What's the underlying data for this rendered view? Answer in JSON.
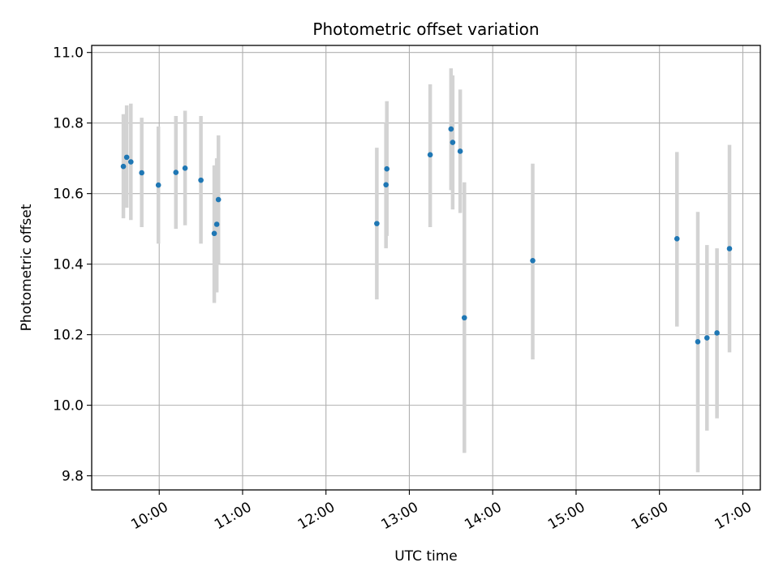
{
  "chart_data": {
    "type": "scatter",
    "title": "Photometric offset variation",
    "xlabel": "UTC time",
    "ylabel": "Photometric offset",
    "x_unit": "hours UTC",
    "xlim": [
      9.19,
      17.21
    ],
    "ylim": [
      9.76,
      11.02
    ],
    "x_ticks": [
      10,
      11,
      12,
      13,
      14,
      15,
      16,
      17
    ],
    "x_tick_labels": [
      "10:00",
      "11:00",
      "12:00",
      "13:00",
      "14:00",
      "15:00",
      "16:00",
      "17:00"
    ],
    "y_ticks": [
      9.8,
      10.0,
      10.2,
      10.4,
      10.6,
      10.8,
      11.0
    ],
    "y_tick_labels": [
      "9.8",
      "10.0",
      "10.2",
      "10.4",
      "10.6",
      "10.8",
      "11.0"
    ],
    "grid": true,
    "colors": {
      "point": "#1f77b4",
      "errorbar": "#d3d3d3",
      "grid": "#b0b0b0"
    },
    "points": [
      {
        "x": 9.57,
        "y": 10.677,
        "ylo": 10.53,
        "yhi": 10.825
      },
      {
        "x": 9.61,
        "y": 10.703,
        "ylo": 10.56,
        "yhi": 10.85
      },
      {
        "x": 9.66,
        "y": 10.69,
        "ylo": 10.525,
        "yhi": 10.855
      },
      {
        "x": 9.79,
        "y": 10.659,
        "ylo": 10.505,
        "yhi": 10.815
      },
      {
        "x": 9.99,
        "y": 10.624,
        "ylo": 10.458,
        "yhi": 10.79
      },
      {
        "x": 10.2,
        "y": 10.66,
        "ylo": 10.5,
        "yhi": 10.82
      },
      {
        "x": 10.31,
        "y": 10.672,
        "ylo": 10.51,
        "yhi": 10.835
      },
      {
        "x": 10.5,
        "y": 10.638,
        "ylo": 10.458,
        "yhi": 10.82
      },
      {
        "x": 10.66,
        "y": 10.487,
        "ylo": 10.29,
        "yhi": 10.68
      },
      {
        "x": 10.69,
        "y": 10.513,
        "ylo": 10.32,
        "yhi": 10.7
      },
      {
        "x": 10.71,
        "y": 10.583,
        "ylo": 10.4,
        "yhi": 10.765
      },
      {
        "x": 12.61,
        "y": 10.515,
        "ylo": 10.3,
        "yhi": 10.73
      },
      {
        "x": 12.72,
        "y": 10.625,
        "ylo": 10.445,
        "yhi": 10.8
      },
      {
        "x": 12.73,
        "y": 10.67,
        "ylo": 10.48,
        "yhi": 10.862
      },
      {
        "x": 13.25,
        "y": 10.71,
        "ylo": 10.505,
        "yhi": 10.91
      },
      {
        "x": 13.5,
        "y": 10.783,
        "ylo": 10.61,
        "yhi": 10.955
      },
      {
        "x": 13.52,
        "y": 10.745,
        "ylo": 10.555,
        "yhi": 10.935
      },
      {
        "x": 13.61,
        "y": 10.72,
        "ylo": 10.545,
        "yhi": 10.895
      },
      {
        "x": 13.66,
        "y": 10.248,
        "ylo": 9.865,
        "yhi": 10.632
      },
      {
        "x": 14.48,
        "y": 10.41,
        "ylo": 10.13,
        "yhi": 10.685
      },
      {
        "x": 16.21,
        "y": 10.472,
        "ylo": 10.223,
        "yhi": 10.718
      },
      {
        "x": 16.46,
        "y": 10.18,
        "ylo": 9.81,
        "yhi": 10.548
      },
      {
        "x": 16.57,
        "y": 10.191,
        "ylo": 9.928,
        "yhi": 10.454
      },
      {
        "x": 16.69,
        "y": 10.205,
        "ylo": 9.963,
        "yhi": 10.445
      },
      {
        "x": 16.84,
        "y": 10.444,
        "ylo": 10.15,
        "yhi": 10.738
      }
    ]
  }
}
